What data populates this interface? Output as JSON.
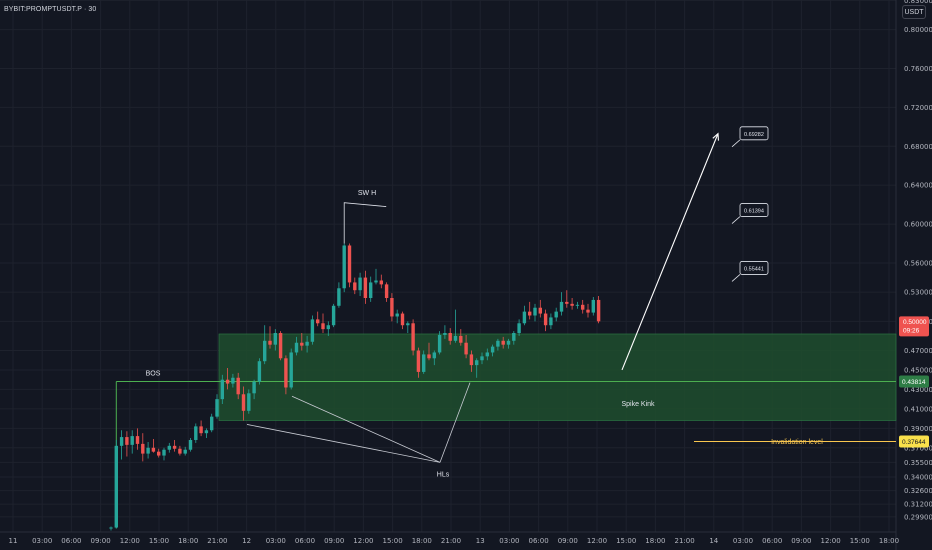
{
  "header": {
    "symbol": "BYBIT:PROMPTUSDT.P · 30",
    "currency": "USDT"
  },
  "colors": {
    "up": "#26a69a",
    "down": "#ef5350",
    "zone": "#1f4d2e",
    "zone_border": "#2e7d46",
    "bg": "#131722"
  },
  "chart_data": {
    "type": "candlestick",
    "ylim": [
      0.2834,
      0.8304
    ],
    "y_ticks": [
      "0.29900",
      "0.31200",
      "0.32600",
      "0.34000",
      "0.35500",
      "0.37000",
      "0.39000",
      "0.41000",
      "0.43000",
      "0.45000",
      "0.47000",
      "0.50000",
      "0.53000",
      "0.56000",
      "0.60000",
      "0.64000",
      "0.68000",
      "0.72000",
      "0.76000",
      "0.80000",
      "0.83000"
    ],
    "x_ticks": [
      "11",
      "03:00",
      "06:00",
      "09:00",
      "12:00",
      "15:00",
      "18:00",
      "21:00",
      "12",
      "03:00",
      "06:00",
      "09:00",
      "12:00",
      "15:00",
      "18:00",
      "21:00",
      "13",
      "03:00",
      "06:00",
      "09:00",
      "12:00",
      "15:00",
      "18:00",
      "21:00",
      "14",
      "03:00",
      "06:00",
      "09:00",
      "12:00",
      "15:00",
      "18:00"
    ],
    "candles": [
      [
        0.287,
        0.289,
        0.285,
        0.288
      ],
      [
        0.288,
        0.378,
        0.287,
        0.372
      ],
      [
        0.372,
        0.388,
        0.358,
        0.381
      ],
      [
        0.381,
        0.387,
        0.361,
        0.373
      ],
      [
        0.373,
        0.388,
        0.364,
        0.382
      ],
      [
        0.382,
        0.39,
        0.368,
        0.374
      ],
      [
        0.374,
        0.385,
        0.356,
        0.364
      ],
      [
        0.364,
        0.376,
        0.359,
        0.37
      ],
      [
        0.37,
        0.379,
        0.365,
        0.366
      ],
      [
        0.366,
        0.369,
        0.36,
        0.362
      ],
      [
        0.362,
        0.37,
        0.357,
        0.368
      ],
      [
        0.368,
        0.375,
        0.365,
        0.372
      ],
      [
        0.372,
        0.378,
        0.366,
        0.369
      ],
      [
        0.369,
        0.372,
        0.362,
        0.364
      ],
      [
        0.364,
        0.371,
        0.362,
        0.368
      ],
      [
        0.368,
        0.38,
        0.366,
        0.378
      ],
      [
        0.378,
        0.395,
        0.375,
        0.392
      ],
      [
        0.392,
        0.398,
        0.382,
        0.385
      ],
      [
        0.385,
        0.39,
        0.38,
        0.388
      ],
      [
        0.388,
        0.405,
        0.386,
        0.402
      ],
      [
        0.402,
        0.425,
        0.4,
        0.42
      ],
      [
        0.42,
        0.445,
        0.415,
        0.44
      ],
      [
        0.44,
        0.452,
        0.43,
        0.436
      ],
      [
        0.436,
        0.446,
        0.432,
        0.442
      ],
      [
        0.442,
        0.447,
        0.42,
        0.425
      ],
      [
        0.425,
        0.433,
        0.398,
        0.408
      ],
      [
        0.408,
        0.43,
        0.405,
        0.426
      ],
      [
        0.426,
        0.44,
        0.42,
        0.438
      ],
      [
        0.438,
        0.462,
        0.435,
        0.459
      ],
      [
        0.459,
        0.496,
        0.456,
        0.48
      ],
      [
        0.48,
        0.495,
        0.472,
        0.476
      ],
      [
        0.476,
        0.492,
        0.47,
        0.488
      ],
      [
        0.488,
        0.49,
        0.46,
        0.462
      ],
      [
        0.462,
        0.465,
        0.425,
        0.432
      ],
      [
        0.432,
        0.472,
        0.43,
        0.468
      ],
      [
        0.468,
        0.484,
        0.465,
        0.478
      ],
      [
        0.478,
        0.488,
        0.47,
        0.475
      ],
      [
        0.475,
        0.485,
        0.468,
        0.479
      ],
      [
        0.479,
        0.506,
        0.476,
        0.502
      ],
      [
        0.502,
        0.51,
        0.495,
        0.498
      ],
      [
        0.498,
        0.508,
        0.488,
        0.492
      ],
      [
        0.492,
        0.5,
        0.485,
        0.496
      ],
      [
        0.496,
        0.518,
        0.494,
        0.516
      ],
      [
        0.516,
        0.54,
        0.514,
        0.534
      ],
      [
        0.534,
        0.58,
        0.53,
        0.578
      ],
      [
        0.578,
        0.58,
        0.535,
        0.54
      ],
      [
        0.54,
        0.545,
        0.528,
        0.532
      ],
      [
        0.532,
        0.55,
        0.526,
        0.545
      ],
      [
        0.545,
        0.552,
        0.518,
        0.524
      ],
      [
        0.524,
        0.546,
        0.52,
        0.54
      ],
      [
        0.54,
        0.554,
        0.538,
        0.542
      ],
      [
        0.542,
        0.548,
        0.534,
        0.538
      ],
      [
        0.538,
        0.54,
        0.52,
        0.524
      ],
      [
        0.524,
        0.529,
        0.5,
        0.505
      ],
      [
        0.505,
        0.512,
        0.498,
        0.508
      ],
      [
        0.508,
        0.51,
        0.492,
        0.496
      ],
      [
        0.496,
        0.5,
        0.488,
        0.498
      ],
      [
        0.498,
        0.502,
        0.465,
        0.47
      ],
      [
        0.47,
        0.473,
        0.442,
        0.448
      ],
      [
        0.448,
        0.47,
        0.446,
        0.466
      ],
      [
        0.466,
        0.478,
        0.46,
        0.462
      ],
      [
        0.462,
        0.47,
        0.455,
        0.468
      ],
      [
        0.468,
        0.49,
        0.466,
        0.486
      ],
      [
        0.486,
        0.496,
        0.482,
        0.488
      ],
      [
        0.488,
        0.493,
        0.476,
        0.48
      ],
      [
        0.48,
        0.512,
        0.478,
        0.485
      ],
      [
        0.485,
        0.492,
        0.475,
        0.478
      ],
      [
        0.478,
        0.486,
        0.462,
        0.466
      ],
      [
        0.466,
        0.47,
        0.448,
        0.455
      ],
      [
        0.455,
        0.462,
        0.442,
        0.46
      ],
      [
        0.46,
        0.468,
        0.456,
        0.464
      ],
      [
        0.464,
        0.472,
        0.46,
        0.468
      ],
      [
        0.468,
        0.476,
        0.464,
        0.474
      ],
      [
        0.474,
        0.482,
        0.47,
        0.48
      ],
      [
        0.48,
        0.484,
        0.472,
        0.476
      ],
      [
        0.476,
        0.482,
        0.472,
        0.48
      ],
      [
        0.48,
        0.49,
        0.476,
        0.488
      ],
      [
        0.488,
        0.502,
        0.485,
        0.498
      ],
      [
        0.498,
        0.516,
        0.496,
        0.51
      ],
      [
        0.51,
        0.52,
        0.502,
        0.506
      ],
      [
        0.506,
        0.518,
        0.5,
        0.514
      ],
      [
        0.514,
        0.522,
        0.504,
        0.508
      ],
      [
        0.508,
        0.512,
        0.49,
        0.496
      ],
      [
        0.496,
        0.508,
        0.492,
        0.504
      ],
      [
        0.504,
        0.514,
        0.5,
        0.51
      ],
      [
        0.51,
        0.53,
        0.506,
        0.52
      ],
      [
        0.52,
        0.532,
        0.514,
        0.518
      ],
      [
        0.518,
        0.524,
        0.512,
        0.516
      ],
      [
        0.516,
        0.52,
        0.513,
        0.517
      ],
      [
        0.517,
        0.522,
        0.508,
        0.512
      ],
      [
        0.512,
        0.518,
        0.504,
        0.509
      ],
      [
        0.509,
        0.525,
        0.506,
        0.522
      ],
      [
        0.522,
        0.526,
        0.498,
        0.5
      ]
    ],
    "zone": {
      "top": 0.487,
      "bottom": 0.398
    },
    "bos_level": 0.4381,
    "bos_start_candle": 1,
    "invalidation_level": 0.3764,
    "current_price": {
      "value": "0.50000",
      "countdown": "09:26"
    },
    "price_labels": {
      "bos": "0.43814",
      "invalidation": "0.37644"
    },
    "targets": [
      {
        "label": "0.69282",
        "value": 0.6928
      },
      {
        "label": "0.61394",
        "value": 0.6139
      },
      {
        "label": "0.55441",
        "value": 0.5544
      }
    ],
    "annotations": {
      "bos": "BOS",
      "sw_h": "SW H",
      "hls": "HLs",
      "spike_kink": "Spike Kink",
      "invalidation": "Invalidation level"
    }
  }
}
